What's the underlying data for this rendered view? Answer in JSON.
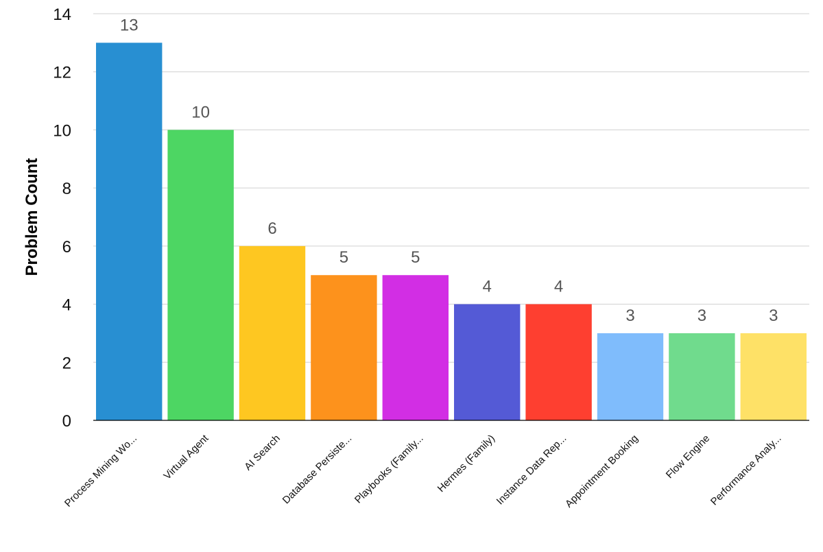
{
  "chart_data": {
    "type": "bar",
    "title": "",
    "xlabel": "",
    "ylabel": "Problem Count",
    "ylim": [
      0,
      14
    ],
    "yticks": [
      0,
      2,
      4,
      6,
      8,
      10,
      12,
      14
    ],
    "grid": true,
    "legend": "none",
    "categories": [
      "Process Mining Wo...",
      "Virtual Agent",
      "AI Search",
      "Database Persiste...",
      "Playbooks (Family...",
      "Hermes (Family)",
      "Instance Data Rep...",
      "Appointment Booking",
      "Flow Engine",
      "Performance Analy..."
    ],
    "values": [
      13,
      10,
      6,
      5,
      5,
      4,
      4,
      3,
      3,
      3
    ],
    "colors": [
      "#288fd2",
      "#4dd663",
      "#fec721",
      "#fd921c",
      "#d22ee4",
      "#545ad6",
      "#fe3f30",
      "#7fbcfc",
      "#70db8d",
      "#fee167"
    ]
  }
}
